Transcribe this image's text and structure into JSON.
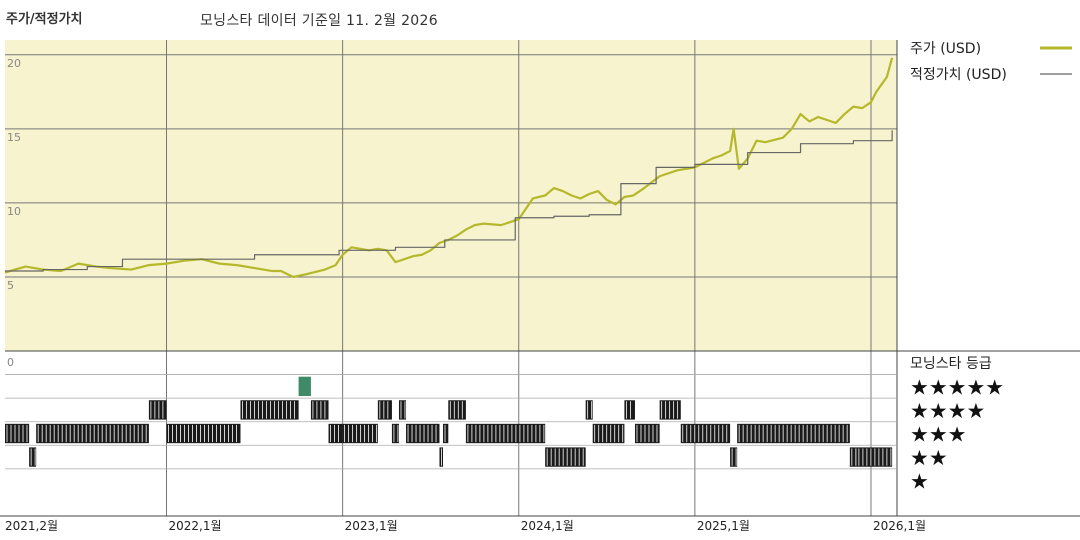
{
  "title": "주가/적정가치",
  "subtitle": "모닝스타 데이터 기준일 11. 2월 2026",
  "colors": {
    "panel_bg": "#f7f3cf",
    "price_line": "#b5b82a",
    "fair_line": "#666666",
    "grid": "#777777",
    "rating_bar": "#1a1a1a",
    "five_star_bar": "#3f8a68",
    "frame": "#444444"
  },
  "chart_data": [
    {
      "type": "line",
      "title": "주가/적정가치",
      "ylim": [
        0,
        21
      ],
      "yticks": [
        "5",
        "10",
        "15",
        "20"
      ],
      "ytick_values": [
        5,
        10,
        15,
        20
      ],
      "grid": true,
      "legend": "right",
      "xticks": [
        "2021,2월",
        "2022,1월",
        "2023,1월",
        "2024,1월",
        "2025,1월",
        "2026,1월"
      ],
      "xtick_dates": [
        2021.083,
        2022.0,
        2023.0,
        2024.0,
        2025.0,
        2026.0
      ],
      "xlim": [
        2021.083,
        2026.125
      ],
      "series": [
        {
          "name": "주가 (USD)",
          "color": "#b5b82a",
          "x": [
            2021.083,
            2021.14,
            2021.2,
            2021.3,
            2021.4,
            2021.5,
            2021.6,
            2021.68,
            2021.8,
            2021.9,
            2022.0,
            2022.1,
            2022.2,
            2022.3,
            2022.4,
            2022.5,
            2022.6,
            2022.65,
            2022.72,
            2022.8,
            2022.9,
            2022.96,
            2023.0,
            2023.05,
            2023.1,
            2023.15,
            2023.2,
            2023.25,
            2023.3,
            2023.35,
            2023.4,
            2023.45,
            2023.5,
            2023.55,
            2023.6,
            2023.65,
            2023.7,
            2023.75,
            2023.8,
            2023.9,
            2024.0,
            2024.08,
            2024.15,
            2024.2,
            2024.25,
            2024.3,
            2024.35,
            2024.4,
            2024.45,
            2024.5,
            2024.55,
            2024.6,
            2024.65,
            2024.7,
            2024.8,
            2024.9,
            2025.0,
            2025.1,
            2025.15,
            2025.2,
            2025.22,
            2025.25,
            2025.3,
            2025.35,
            2025.4,
            2025.5,
            2025.55,
            2025.6,
            2025.65,
            2025.7,
            2025.8,
            2025.85,
            2025.9,
            2025.95,
            2026.0,
            2026.03,
            2026.06,
            2026.09,
            2026.12
          ],
          "y": [
            5.3,
            5.5,
            5.7,
            5.5,
            5.4,
            5.9,
            5.7,
            5.6,
            5.5,
            5.8,
            5.9,
            6.1,
            6.2,
            5.9,
            5.8,
            5.6,
            5.4,
            5.4,
            5.0,
            5.2,
            5.5,
            5.8,
            6.5,
            7.0,
            6.9,
            6.8,
            6.9,
            6.8,
            6.0,
            6.2,
            6.4,
            6.5,
            6.8,
            7.3,
            7.5,
            7.8,
            8.2,
            8.5,
            8.6,
            8.5,
            8.9,
            10.3,
            10.5,
            11.0,
            10.8,
            10.5,
            10.3,
            10.6,
            10.8,
            10.2,
            9.9,
            10.4,
            10.5,
            10.9,
            11.8,
            12.2,
            12.4,
            13.0,
            13.2,
            13.5,
            15.0,
            12.3,
            13.0,
            14.2,
            14.1,
            14.4,
            15.0,
            16.0,
            15.5,
            15.8,
            15.4,
            16.0,
            16.5,
            16.4,
            16.8,
            17.5,
            18.0,
            18.5,
            19.8
          ]
        },
        {
          "name": "적정가치 (USD)",
          "color": "#666666",
          "step": true,
          "x": [
            2021.083,
            2021.3,
            2021.55,
            2021.75,
            2022.5,
            2022.98,
            2023.3,
            2023.58,
            2023.98,
            2024.2,
            2024.4,
            2024.58,
            2024.78,
            2025.0,
            2025.3,
            2025.6,
            2025.9,
            2026.12
          ],
          "y": [
            5.4,
            5.5,
            5.7,
            6.2,
            6.5,
            6.8,
            7.0,
            7.5,
            9.0,
            9.1,
            9.2,
            11.3,
            12.4,
            12.6,
            13.4,
            14.0,
            14.2,
            14.9
          ]
        }
      ]
    },
    {
      "type": "bar",
      "title": "모닝스타 등급",
      "ylim": [
        0,
        6
      ],
      "ytick_label": "0",
      "star_labels": [
        "★★★★★",
        "★★★★",
        "★★★",
        "★★",
        "★"
      ],
      "segments": [
        {
          "start": 2021.083,
          "end": 2021.22,
          "stars": 3
        },
        {
          "start": 2021.22,
          "end": 2021.26,
          "stars": 2
        },
        {
          "start": 2021.26,
          "end": 2021.9,
          "stars": 3
        },
        {
          "start": 2021.9,
          "end": 2022.0,
          "stars": 4
        },
        {
          "start": 2022.0,
          "end": 2022.42,
          "stars": 3
        },
        {
          "start": 2022.42,
          "end": 2022.75,
          "stars": 4
        },
        {
          "start": 2022.75,
          "end": 2022.82,
          "stars": 5
        },
        {
          "start": 2022.82,
          "end": 2022.92,
          "stars": 4
        },
        {
          "start": 2022.92,
          "end": 2023.0,
          "stars": 3
        },
        {
          "start": 2023.0,
          "end": 2023.2,
          "stars": 3
        },
        {
          "start": 2023.2,
          "end": 2023.28,
          "stars": 4
        },
        {
          "start": 2023.28,
          "end": 2023.32,
          "stars": 3
        },
        {
          "start": 2023.32,
          "end": 2023.36,
          "stars": 4
        },
        {
          "start": 2023.36,
          "end": 2023.55,
          "stars": 3
        },
        {
          "start": 2023.55,
          "end": 2023.57,
          "stars": 2
        },
        {
          "start": 2023.57,
          "end": 2023.6,
          "stars": 3
        },
        {
          "start": 2023.6,
          "end": 2023.7,
          "stars": 4
        },
        {
          "start": 2023.7,
          "end": 2024.15,
          "stars": 3
        },
        {
          "start": 2024.15,
          "end": 2024.38,
          "stars": 2
        },
        {
          "start": 2024.38,
          "end": 2024.42,
          "stars": 4
        },
        {
          "start": 2024.42,
          "end": 2024.6,
          "stars": 3
        },
        {
          "start": 2024.6,
          "end": 2024.66,
          "stars": 4
        },
        {
          "start": 2024.66,
          "end": 2024.8,
          "stars": 3
        },
        {
          "start": 2024.8,
          "end": 2024.92,
          "stars": 4
        },
        {
          "start": 2024.92,
          "end": 2025.2,
          "stars": 3
        },
        {
          "start": 2025.2,
          "end": 2025.24,
          "stars": 2
        },
        {
          "start": 2025.24,
          "end": 2025.88,
          "stars": 3
        },
        {
          "start": 2025.88,
          "end": 2025.92,
          "stars": 2
        },
        {
          "start": 2025.92,
          "end": 2026.12,
          "stars": 2
        }
      ]
    }
  ]
}
